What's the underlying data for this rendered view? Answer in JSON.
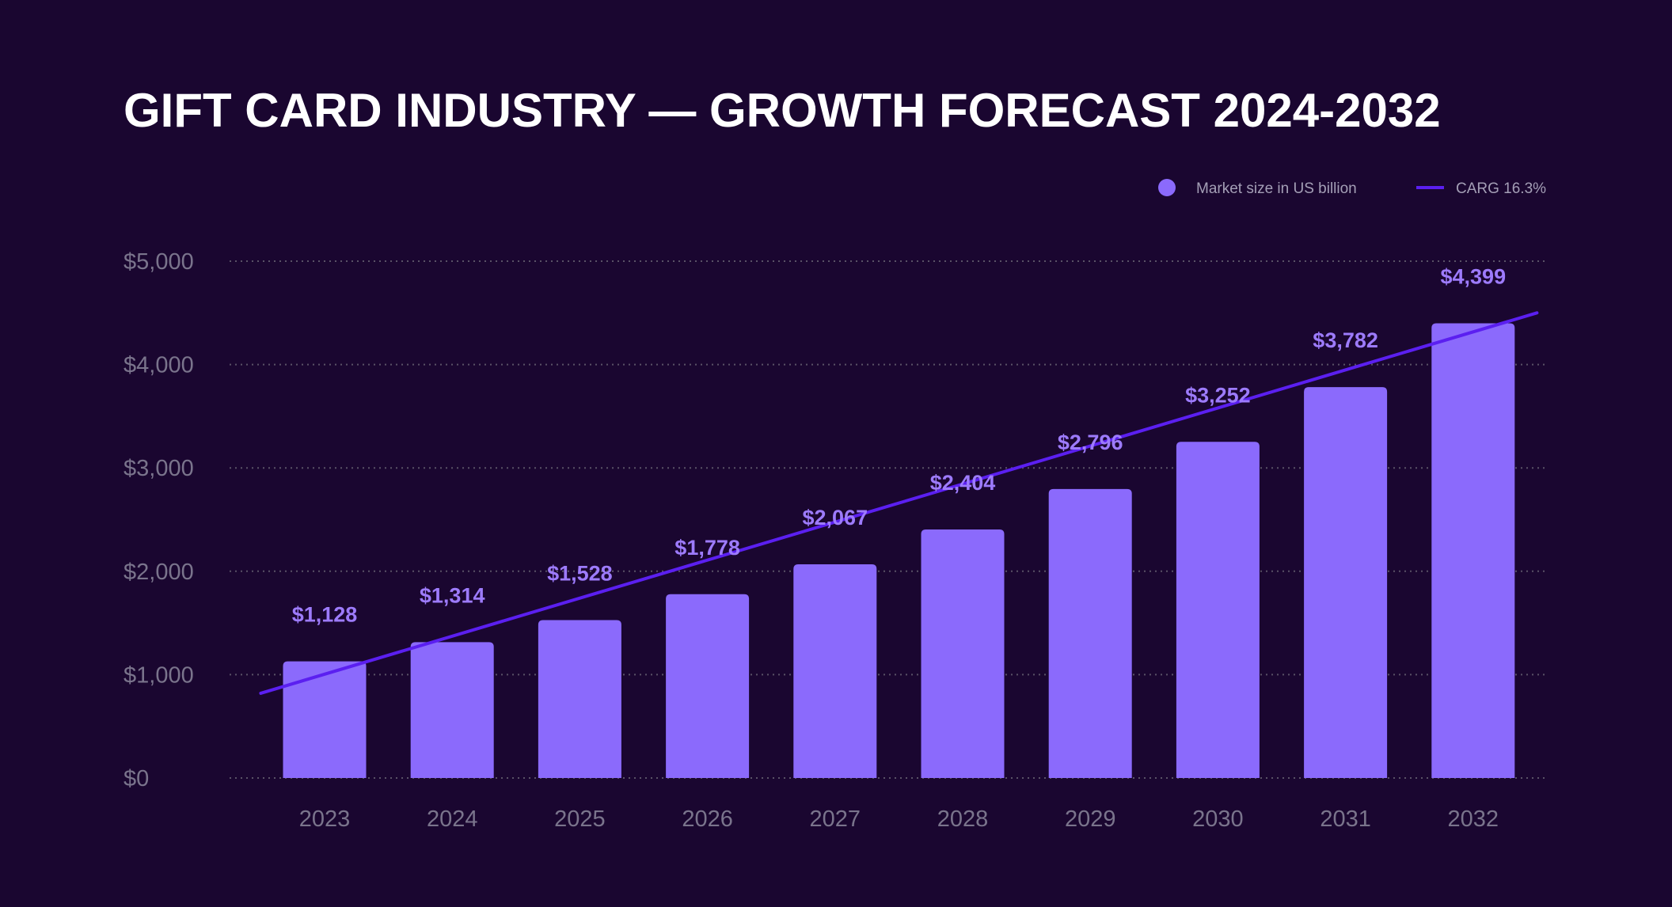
{
  "colors": {
    "background": "#1a0630",
    "bar": "#8b6afc",
    "trend": "#5b1ff0",
    "label": "#9d7bfc",
    "axis_text": "#7a748c"
  },
  "chart_data": {
    "type": "bar",
    "title": "GIFT CARD INDUSTRY — GROWTH FORECAST 2024-2032",
    "xlabel": "",
    "ylabel": "",
    "ylim": [
      0,
      5000
    ],
    "yticks": [
      0,
      1000,
      2000,
      3000,
      4000,
      5000
    ],
    "ytick_labels": [
      "$0",
      "$1,000",
      "$2,000",
      "$3,000",
      "$4,000",
      "$5,000"
    ],
    "grid": true,
    "legend_position": "top-right",
    "categories": [
      "2023",
      "2024",
      "2025",
      "2026",
      "2027",
      "2028",
      "2029",
      "2030",
      "2031",
      "2032"
    ],
    "series": [
      {
        "name": "Market size in US billion",
        "type": "bar",
        "values": [
          1128,
          1314,
          1528,
          1778,
          2067,
          2404,
          2796,
          3252,
          3782,
          4399
        ],
        "labels": [
          "$1,128",
          "$1,314",
          "$1,528",
          "$1,778",
          "$2,067",
          "$2,404",
          "$2,796",
          "$3,252",
          "$3,782",
          "$4,399"
        ]
      },
      {
        "name": "CARG 16.3%",
        "type": "line",
        "start": {
          "x": 2022.5,
          "y": 820
        },
        "end": {
          "x": 2032.5,
          "y": 4500
        }
      }
    ]
  }
}
